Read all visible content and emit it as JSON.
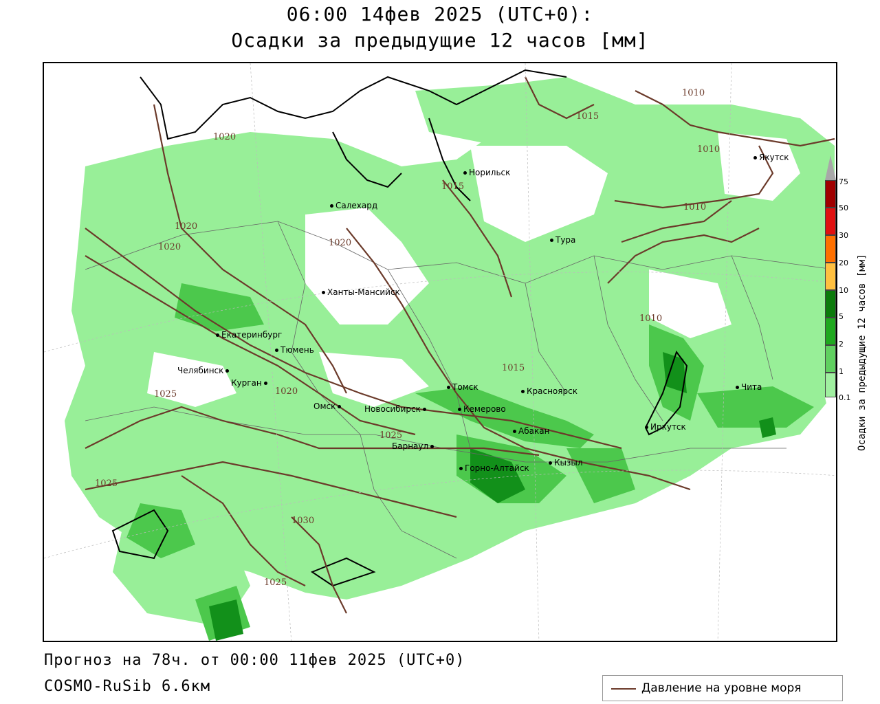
{
  "title_line1": "06:00 14фев 2025 (UTC+0):",
  "title_line2": "Осадки за предыдущие 12 часов [мм]",
  "forecast_text": "Прогноз на 78ч. от 00:00 11фев 2025 (UTC+0)",
  "model_text": "COSMO-RuSib 6.6км",
  "pressure_legend_label": "Давление на уровне моря",
  "colorbar": {
    "label": "Осадки за предыдущие 12 часов [мм]",
    "ticks": [
      "0.1",
      "1",
      "2",
      "5",
      "10",
      "20",
      "30",
      "50",
      "75"
    ],
    "colors": [
      "#a0f0a0",
      "#60d060",
      "#20a020",
      "#0b7a0b",
      "#ffc040",
      "#ff8000",
      "#ff3000",
      "#c00000",
      "#a8a8a8"
    ]
  },
  "cities": [
    {
      "name": "Норильск"
    },
    {
      "name": "Якутск"
    },
    {
      "name": "Салехард"
    },
    {
      "name": "Тура"
    },
    {
      "name": "Ханты-Мансийск"
    },
    {
      "name": "Екатеринбург"
    },
    {
      "name": "Тюмень"
    },
    {
      "name": "Челябинск"
    },
    {
      "name": "Курган"
    },
    {
      "name": "Омск"
    },
    {
      "name": "Томск"
    },
    {
      "name": "Красноярск"
    },
    {
      "name": "Новосибирск"
    },
    {
      "name": "Кемерово"
    },
    {
      "name": "Абакан"
    },
    {
      "name": "Барнаул"
    },
    {
      "name": "Горно-Алтайск"
    },
    {
      "name": "Кызыл"
    },
    {
      "name": "Иркутск"
    },
    {
      "name": "Чита"
    }
  ],
  "isobar_labels": [
    "1010",
    "1010",
    "1010",
    "1010",
    "1015",
    "1015",
    "1015",
    "1020",
    "1020",
    "1020",
    "1020",
    "1020",
    "1025",
    "1025",
    "1025",
    "1025",
    "1030"
  ]
}
